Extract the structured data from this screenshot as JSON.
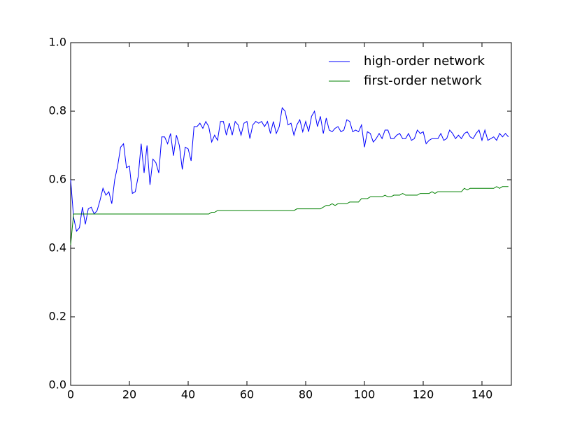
{
  "chart_data": {
    "type": "line",
    "x": [
      0,
      1,
      2,
      3,
      4,
      5,
      6,
      7,
      8,
      9,
      10,
      11,
      12,
      13,
      14,
      15,
      16,
      17,
      18,
      19,
      20,
      21,
      22,
      23,
      24,
      25,
      26,
      27,
      28,
      29,
      30,
      31,
      32,
      33,
      34,
      35,
      36,
      37,
      38,
      39,
      40,
      41,
      42,
      43,
      44,
      45,
      46,
      47,
      48,
      49,
      50,
      51,
      52,
      53,
      54,
      55,
      56,
      57,
      58,
      59,
      60,
      61,
      62,
      63,
      64,
      65,
      66,
      67,
      68,
      69,
      70,
      71,
      72,
      73,
      74,
      75,
      76,
      77,
      78,
      79,
      80,
      81,
      82,
      83,
      84,
      85,
      86,
      87,
      88,
      89,
      90,
      91,
      92,
      93,
      94,
      95,
      96,
      97,
      98,
      99,
      100,
      101,
      102,
      103,
      104,
      105,
      106,
      107,
      108,
      109,
      110,
      111,
      112,
      113,
      114,
      115,
      116,
      117,
      118,
      119,
      120,
      121,
      122,
      123,
      124,
      125,
      126,
      127,
      128,
      129,
      130,
      131,
      132,
      133,
      134,
      135,
      136,
      137,
      138,
      139,
      140,
      141,
      142,
      143,
      144,
      145,
      146,
      147,
      148,
      149
    ],
    "series": [
      {
        "name": "high-order network",
        "color": "#0000ff",
        "values": [
          0.6,
          0.49,
          0.45,
          0.46,
          0.52,
          0.47,
          0.515,
          0.52,
          0.5,
          0.51,
          0.54,
          0.575,
          0.555,
          0.565,
          0.53,
          0.6,
          0.64,
          0.695,
          0.705,
          0.635,
          0.64,
          0.56,
          0.565,
          0.61,
          0.705,
          0.62,
          0.7,
          0.585,
          0.66,
          0.65,
          0.62,
          0.725,
          0.725,
          0.705,
          0.735,
          0.67,
          0.73,
          0.7,
          0.63,
          0.695,
          0.69,
          0.655,
          0.755,
          0.755,
          0.765,
          0.75,
          0.77,
          0.755,
          0.71,
          0.73,
          0.715,
          0.77,
          0.77,
          0.73,
          0.765,
          0.73,
          0.77,
          0.76,
          0.73,
          0.765,
          0.77,
          0.72,
          0.76,
          0.77,
          0.765,
          0.77,
          0.755,
          0.77,
          0.735,
          0.77,
          0.735,
          0.755,
          0.81,
          0.8,
          0.76,
          0.765,
          0.73,
          0.76,
          0.775,
          0.74,
          0.77,
          0.74,
          0.785,
          0.8,
          0.755,
          0.785,
          0.735,
          0.78,
          0.745,
          0.74,
          0.75,
          0.755,
          0.74,
          0.745,
          0.775,
          0.77,
          0.74,
          0.745,
          0.74,
          0.76,
          0.695,
          0.74,
          0.735,
          0.71,
          0.72,
          0.735,
          0.72,
          0.745,
          0.745,
          0.72,
          0.72,
          0.73,
          0.735,
          0.72,
          0.72,
          0.735,
          0.715,
          0.72,
          0.745,
          0.735,
          0.74,
          0.705,
          0.715,
          0.72,
          0.72,
          0.72,
          0.735,
          0.715,
          0.72,
          0.745,
          0.735,
          0.72,
          0.73,
          0.72,
          0.735,
          0.74,
          0.725,
          0.72,
          0.735,
          0.745,
          0.715,
          0.745,
          0.715,
          0.72,
          0.725,
          0.715,
          0.735,
          0.725,
          0.735,
          0.725
        ]
      },
      {
        "name": "first-order network",
        "color": "#008000",
        "values": [
          0.41,
          0.5,
          0.5,
          0.5,
          0.5,
          0.5,
          0.5,
          0.5,
          0.5,
          0.5,
          0.5,
          0.5,
          0.5,
          0.5,
          0.5,
          0.5,
          0.5,
          0.5,
          0.5,
          0.5,
          0.5,
          0.5,
          0.5,
          0.5,
          0.5,
          0.5,
          0.5,
          0.5,
          0.5,
          0.5,
          0.5,
          0.5,
          0.5,
          0.5,
          0.5,
          0.5,
          0.5,
          0.5,
          0.5,
          0.5,
          0.5,
          0.5,
          0.5,
          0.5,
          0.5,
          0.5,
          0.5,
          0.5,
          0.505,
          0.505,
          0.51,
          0.51,
          0.51,
          0.51,
          0.51,
          0.51,
          0.51,
          0.51,
          0.51,
          0.51,
          0.51,
          0.51,
          0.51,
          0.51,
          0.51,
          0.51,
          0.51,
          0.51,
          0.51,
          0.51,
          0.51,
          0.51,
          0.51,
          0.51,
          0.51,
          0.51,
          0.51,
          0.515,
          0.515,
          0.515,
          0.515,
          0.515,
          0.515,
          0.515,
          0.515,
          0.515,
          0.52,
          0.525,
          0.525,
          0.53,
          0.525,
          0.53,
          0.53,
          0.53,
          0.53,
          0.535,
          0.535,
          0.535,
          0.535,
          0.545,
          0.545,
          0.545,
          0.55,
          0.55,
          0.55,
          0.55,
          0.55,
          0.555,
          0.55,
          0.55,
          0.555,
          0.555,
          0.555,
          0.56,
          0.555,
          0.555,
          0.555,
          0.555,
          0.555,
          0.56,
          0.56,
          0.56,
          0.56,
          0.565,
          0.56,
          0.565,
          0.565,
          0.565,
          0.565,
          0.565,
          0.565,
          0.565,
          0.565,
          0.565,
          0.575,
          0.57,
          0.575,
          0.575,
          0.575,
          0.575,
          0.575,
          0.575,
          0.575,
          0.575,
          0.575,
          0.58,
          0.575,
          0.58,
          0.58,
          0.58
        ]
      }
    ],
    "xlim": [
      0,
      150
    ],
    "xticks": [
      0,
      20,
      40,
      60,
      80,
      100,
      120,
      140
    ],
    "ylim": [
      0,
      1
    ],
    "yticks": [
      {
        "value": 0,
        "label": "0.0"
      },
      0.2,
      0.4,
      0.6,
      0.8,
      {
        "value": 1,
        "label": "1.0"
      }
    ],
    "legend": "upper right"
  }
}
